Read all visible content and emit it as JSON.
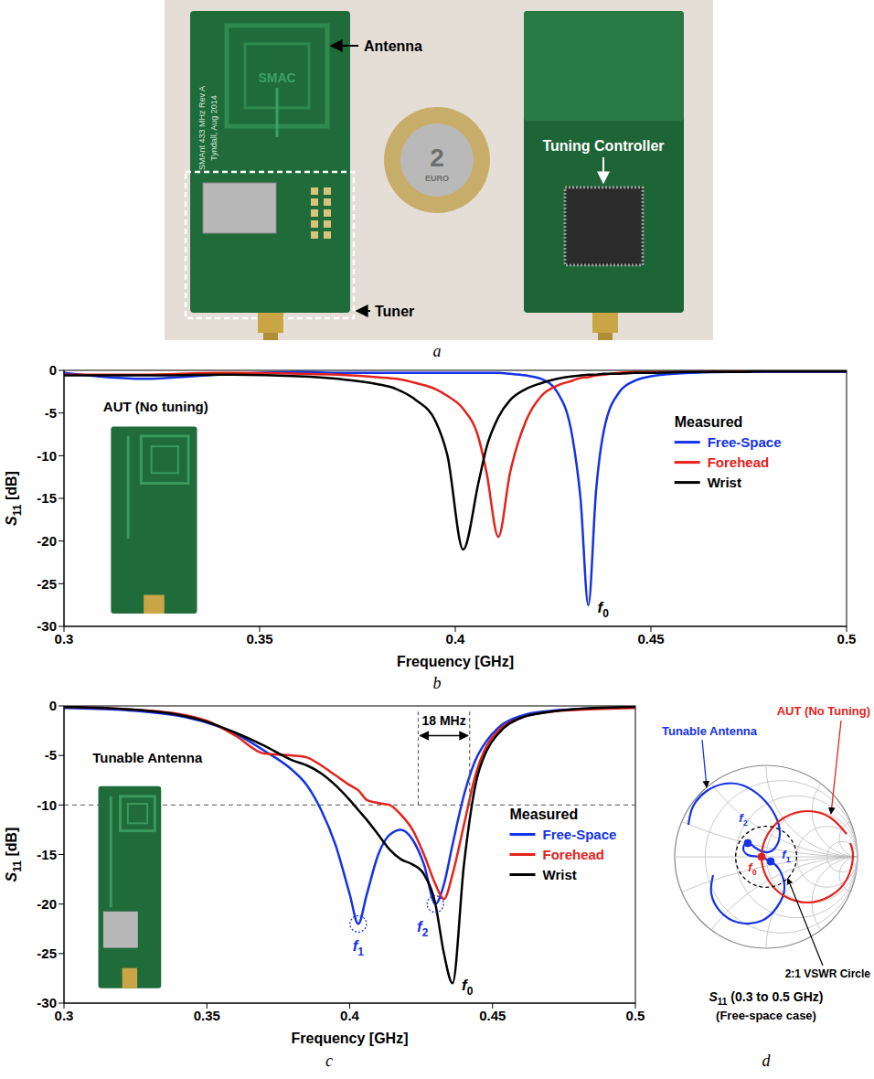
{
  "photo": {
    "panel": "a",
    "labels": [
      "Antenna",
      "Tuner",
      "Tuning Controller"
    ],
    "silkscreen": [
      "SMAC",
      "SMAnt 433 MHz Rev A",
      "Tyndall, Aug 2014"
    ],
    "coin": [
      "2",
      "EURO"
    ]
  },
  "chart_data": [
    {
      "panel": "b",
      "type": "line",
      "inset_label": "AUT (No tuning)",
      "x_label": "Frequency [GHz]",
      "y_label": "S11 [dB]",
      "x": [
        0.3,
        0.32,
        0.34,
        0.36,
        0.37,
        0.38,
        0.385,
        0.39,
        0.395,
        0.398,
        0.402,
        0.406,
        0.408,
        0.411,
        0.414,
        0.418,
        0.422,
        0.426,
        0.43,
        0.432,
        0.434,
        0.436,
        0.438,
        0.442,
        0.446,
        0.45,
        0.46,
        0.47,
        0.48,
        0.5
      ],
      "xlim": [
        0.3,
        0.5
      ],
      "xticks": [
        0.3,
        0.35,
        0.4,
        0.45,
        0.5
      ],
      "ylim": [
        -30,
        0
      ],
      "yticks": [
        0,
        -5,
        -10,
        -15,
        -20,
        -25,
        -30
      ],
      "legend": "right",
      "legend_title": "Measured",
      "series": [
        {
          "name": "Free-Space",
          "color": "#1432e6",
          "values": [
            -0.3,
            -1.0,
            -0.5,
            -0.2,
            -0.3,
            -0.3,
            -0.3,
            -0.3,
            -0.3,
            -0.3,
            -0.3,
            -0.3,
            -0.3,
            -0.3,
            -0.4,
            -0.6,
            -1.0,
            -2.5,
            -8,
            -15,
            -27.5,
            -14,
            -7,
            -2.5,
            -1.2,
            -0.7,
            -0.3,
            -0.2,
            -0.2,
            -0.2
          ]
        },
        {
          "name": "Forehead",
          "color": "#e4221b",
          "values": [
            -0.5,
            -0.5,
            -0.3,
            -0.4,
            -0.5,
            -0.8,
            -1.0,
            -1.5,
            -2.2,
            -3,
            -4.5,
            -8,
            -12,
            -19.5,
            -12,
            -6,
            -3,
            -1.8,
            -1.2,
            -0.9,
            -0.8,
            -0.6,
            -0.5,
            -0.3,
            -0.2,
            -0.2,
            -0.2,
            -0.1,
            -0.1,
            -0.1
          ]
        },
        {
          "name": "Wrist",
          "color": "#000000",
          "values": [
            -0.6,
            -0.6,
            -0.5,
            -0.7,
            -1.0,
            -1.6,
            -2.2,
            -3.5,
            -6,
            -10,
            -21,
            -13,
            -9,
            -5.5,
            -3.5,
            -2.2,
            -1.5,
            -1.0,
            -0.7,
            -0.6,
            -0.5,
            -0.5,
            -0.4,
            -0.4,
            -0.3,
            -0.3,
            -0.2,
            -0.2,
            -0.1,
            -0.1
          ]
        }
      ],
      "annotations": [
        {
          "text": "f0",
          "x": 0.434,
          "y": -27.5,
          "color": "#000000"
        }
      ]
    },
    {
      "panel": "c",
      "type": "line",
      "inset_label": "Tunable Antenna",
      "x_label": "Frequency [GHz]",
      "y_label": "S11 [dB]",
      "x": [
        0.3,
        0.32,
        0.34,
        0.35,
        0.36,
        0.37,
        0.38,
        0.385,
        0.39,
        0.395,
        0.4,
        0.403,
        0.406,
        0.41,
        0.414,
        0.418,
        0.422,
        0.426,
        0.43,
        0.433,
        0.436,
        0.44,
        0.444,
        0.448,
        0.452,
        0.46,
        0.47,
        0.48,
        0.5
      ],
      "xlim": [
        0.3,
        0.5
      ],
      "xticks": [
        0.3,
        0.35,
        0.4,
        0.45,
        0.5
      ],
      "ylim": [
        -30,
        0
      ],
      "yticks": [
        0,
        -5,
        -10,
        -15,
        -20,
        -25,
        -30
      ],
      "legend": "right",
      "legend_title": "Measured",
      "threshold": -10,
      "span": {
        "from": 0.424,
        "to": 0.442,
        "label": "18 MHz"
      },
      "series": [
        {
          "name": "Free-Space",
          "color": "#1432e6",
          "values": [
            -0.2,
            -0.4,
            -1.0,
            -1.7,
            -2.8,
            -4.5,
            -6.5,
            -8,
            -10.5,
            -14,
            -19,
            -22,
            -19,
            -15,
            -13,
            -12.5,
            -13.5,
            -16,
            -20,
            -18,
            -14,
            -9,
            -5.5,
            -3.5,
            -2.2,
            -1.0,
            -0.5,
            -0.3,
            -0.1
          ]
        },
        {
          "name": "Forehead",
          "color": "#e4221b",
          "values": [
            -0.1,
            -0.3,
            -0.8,
            -1.5,
            -3,
            -4.8,
            -5,
            -5.2,
            -6,
            -7,
            -8,
            -8.5,
            -9.5,
            -9.8,
            -10,
            -11,
            -12.5,
            -15,
            -18,
            -19.5,
            -17,
            -12,
            -7,
            -4,
            -2.5,
            -1.2,
            -0.6,
            -0.4,
            -0.2
          ]
        },
        {
          "name": "Wrist",
          "color": "#000000",
          "values": [
            -0.1,
            -0.3,
            -0.9,
            -1.6,
            -2.7,
            -4,
            -5.5,
            -6,
            -6.8,
            -8,
            -9.5,
            -10.5,
            -11.5,
            -13,
            -14.5,
            -15.5,
            -16,
            -17,
            -20,
            -25,
            -28,
            -16,
            -8,
            -4.5,
            -2.8,
            -1.2,
            -0.6,
            -0.3,
            -0.1
          ]
        }
      ],
      "annotations": [
        {
          "text": "f1",
          "x": 0.403,
          "y": -22,
          "color": "#1432e6",
          "marker": "dashed_circle"
        },
        {
          "text": "f2",
          "x": 0.43,
          "y": -20,
          "color": "#1432e6",
          "marker": "dashed_circle"
        },
        {
          "text": "f0",
          "x": 0.436,
          "y": -28,
          "color": "#000000"
        }
      ]
    },
    {
      "panel": "d",
      "type": "smith",
      "xlim": [
        -1,
        1
      ],
      "ylim": [
        -1,
        1
      ],
      "tick_labels": false,
      "grid": true,
      "vswr": 2,
      "vswr_label": "2:1 VSWR Circle",
      "caption": [
        "S11 (0.3 to 0.5 GHz)",
        "(Free-space case)"
      ],
      "series": [
        {
          "name": "Tunable Antenna",
          "color": "#1432e6",
          "x": [
            -0.85,
            -0.8,
            -0.65,
            -0.45,
            -0.25,
            -0.05,
            0.1,
            0.15,
            0.1,
            0.0,
            -0.12,
            -0.2,
            -0.25,
            -0.2,
            -0.08,
            0.05,
            0.15,
            0.2,
            0.12,
            -0.05,
            -0.3,
            -0.5,
            -0.6,
            -0.58
          ],
          "values": [
            0.35,
            0.55,
            0.72,
            0.8,
            0.78,
            0.65,
            0.45,
            0.25,
            0.1,
            0.05,
            0.1,
            0.15,
            0.1,
            0.02,
            0.0,
            -0.05,
            -0.15,
            -0.35,
            -0.55,
            -0.7,
            -0.72,
            -0.6,
            -0.4,
            -0.2
          ]
        },
        {
          "name": "AUT (No Tuning)",
          "color": "#e4221b",
          "x": [
            0.88,
            0.7,
            0.45,
            0.2,
            0.02,
            -0.05,
            0.02,
            0.2,
            0.45,
            0.7,
            0.88,
            0.95,
            0.92
          ],
          "values": [
            0.25,
            0.43,
            0.5,
            0.43,
            0.25,
            0.0,
            -0.25,
            -0.43,
            -0.5,
            -0.43,
            -0.25,
            0.0,
            0.15
          ]
        }
      ],
      "points": [
        {
          "text": "f0",
          "x": -0.05,
          "y": 0.0,
          "color": "#e4221b"
        },
        {
          "text": "f1",
          "x": 0.05,
          "y": -0.05,
          "color": "#1432e6"
        },
        {
          "text": "f2",
          "x": -0.2,
          "y": 0.15,
          "color": "#1432e6"
        }
      ]
    }
  ]
}
